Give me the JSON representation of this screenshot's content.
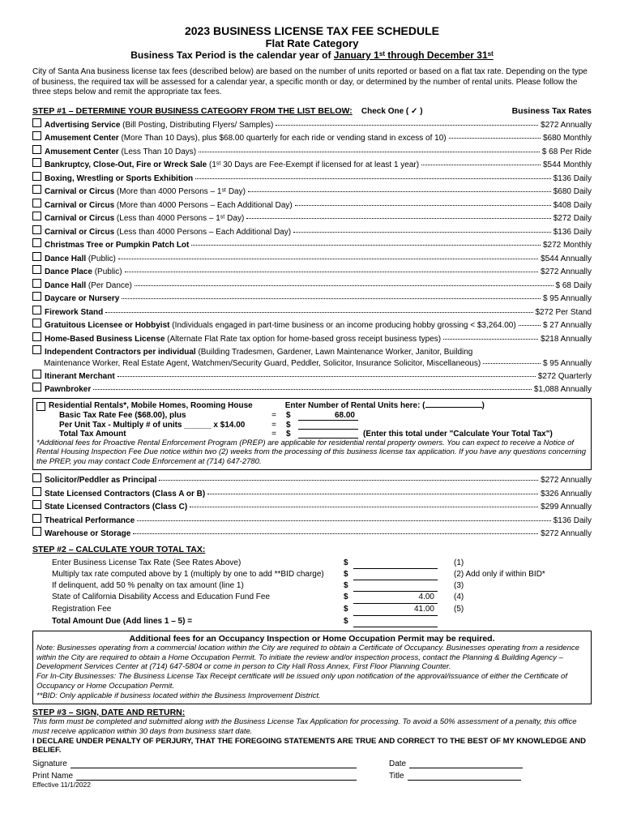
{
  "header": {
    "title": "2023 BUSINESS LICENSE TAX FEE SCHEDULE",
    "subtitle": "Flat Rate Category",
    "period_prefix": "Business Tax Period is the calendar year of ",
    "period_range": "January 1ˢᵗ through December 31ˢᵗ"
  },
  "intro": "City of Santa Ana business license tax fees (described below) are based on the number of units reported or based on a flat tax rate. Depending on the type of business, the required tax will be assessed for a calendar year, a specific month or day, or determined by the number of rental units. Please follow the three steps below and remit the appropriate tax fees.",
  "step1": {
    "label": "STEP #1 – DETERMINE YOUR BUSINESS CATEGORY FROM THE LIST BELOW:",
    "check": "Check One ( ✓ )",
    "rates_label": "Business Tax Rates"
  },
  "items": [
    {
      "name": "Advertising Service",
      "desc": " (Bill Posting, Distributing Flyers/ Samples)",
      "rate": "$272  Annually"
    },
    {
      "name": "Amusement Center",
      "desc": " (More Than 10 Days), plus $68.00 quarterly for each ride or vending stand in excess of 10)",
      "rate": "$680  Monthly"
    },
    {
      "name": "Amusement Center",
      "desc": " (Less Than 10 Days)",
      "rate": "$ 68  Per Ride"
    },
    {
      "name": "Bankruptcy, Close-Out, Fire or Wreck Sale",
      "desc": " (1ˢᵗ 30 Days are Fee-Exempt if licensed for at least 1 year)",
      "rate": "$544  Monthly"
    },
    {
      "name": "Boxing, Wrestling or Sports Exhibition",
      "desc": "",
      "rate": "$136  Daily"
    },
    {
      "name": "Carnival or Circus",
      "desc": " (More than 4000 Persons – 1ˢᵗ Day)",
      "rate": "$680  Daily"
    },
    {
      "name": "Carnival or Circus",
      "desc": " (More than 4000 Persons – Each Additional Day)",
      "rate": "$408  Daily"
    },
    {
      "name": "Carnival or Circus",
      "desc": " (Less than 4000 Persons – 1ˢᵗ Day)",
      "rate": "$272  Daily"
    },
    {
      "name": "Carnival or Circus",
      "desc": " (Less than 4000 Persons – Each Additional Day)",
      "rate": "$136  Daily"
    },
    {
      "name": "Christmas Tree or Pumpkin Patch Lot",
      "desc": "",
      "rate": "$272  Monthly"
    },
    {
      "name": "Dance Hall",
      "desc": " (Public)",
      "rate": "$544  Annually"
    },
    {
      "name": "Dance Place",
      "desc": " (Public)",
      "rate": "$272  Annually"
    },
    {
      "name": "Dance Hall",
      "desc": " (Per Dance)",
      "rate": "$ 68  Daily"
    },
    {
      "name": "Daycare or Nursery",
      "desc": "",
      "rate": "$ 95  Annually"
    },
    {
      "name": "Firework Stand",
      "desc": "",
      "rate": "$272  Per Stand"
    },
    {
      "name": "Gratuitous Licensee or Hobbyist",
      "desc": " (Individuals engaged in part-time business or an income producing hobby grossing < $3,264.00)",
      "rate": "$ 27  Annually"
    },
    {
      "name": "Home-Based Business License",
      "desc": " (Alternate Flat Rate tax option for home-based gross receipt business types)",
      "rate": "$218  Annually"
    }
  ],
  "independent": {
    "name": "Independent Contractors per individual",
    "desc": " (Building Tradesmen, Gardener, Lawn Maintenance Worker, Janitor, Building",
    "line2": "Maintenance Worker, Real Estate Agent, Watchmen/Security Guard, Peddler, Solicitor, Insurance Solicitor, Miscellaneous)",
    "rate": "$ 95  Annually"
  },
  "items2": [
    {
      "name": "Itinerant Merchant",
      "desc": "",
      "rate": "$272  Quarterly"
    },
    {
      "name": "Pawnbroker",
      "desc": "",
      "rate": "$1,088 Annually"
    }
  ],
  "rental": {
    "name": "Residential Rentals*, Mobile Homes, Rooming House",
    "enter": "Enter Number of Rental Units here: (",
    "basic_label": "Basic Tax Rate Fee ($68.00), plus",
    "basic_val": "68.00",
    "unit_label": "Per Unit Tax - Multiply # of units ______ x $14.00",
    "total_label": "Total Tax Amount",
    "total_hint": "(Enter this total under \"Calculate Your Total Tax\")",
    "note": "*Additional fees for Proactive Rental Enforcement Program (PREP) are applicable for residential rental property owners. You can expect to receive a Notice of Rental Housing Inspection Fee Due notice within two (2) weeks from the processing of this business license tax application. If you have any questions concerning the PREP, you may contact Code Enforcement at (714) 647-2780."
  },
  "items3": [
    {
      "name": "Solicitor/Peddler as Principal",
      "desc": "",
      "rate": "$272  Annually"
    },
    {
      "name": "State Licensed Contractors (Class A or B)",
      "desc": "",
      "rate": "$326  Annually"
    },
    {
      "name": "State Licensed Contractors (Class C)",
      "desc": "",
      "rate": "$299  Annually"
    },
    {
      "name": "Theatrical Performance",
      "desc": "",
      "rate": "$136  Daily"
    },
    {
      "name": "Warehouse or Storage",
      "desc": "",
      "rate": "$272  Annually"
    }
  ],
  "step2": {
    "label": "STEP #2 – CALCULATE YOUR TOTAL TAX:",
    "rows": [
      {
        "label": "Enter Business License Tax Rate (See Rates Above)",
        "val": "",
        "num": "(1)",
        "extra": ""
      },
      {
        "label": "Multiply tax rate computed above by 1 (multiply by one to add **BID charge)",
        "val": "",
        "num": "(2)",
        "extra": " Add only if within BID*"
      },
      {
        "label": "If delinquent, add 50 % penalty on tax amount (line 1)",
        "val": "",
        "num": "(3)",
        "extra": ""
      },
      {
        "label": "State of California Disability Access and Education Fund Fee",
        "val": "4.00",
        "num": "(4)",
        "extra": ""
      },
      {
        "label": "Registration Fee",
        "val": "41.00",
        "num": "(5)",
        "extra": ""
      }
    ],
    "total": "Total Amount Due  (Add lines 1 – 5)  ="
  },
  "notes": {
    "header": "Additional fees for an Occupancy Inspection or Home Occupation Permit may be required.",
    "body": "Note: Businesses operating from a commercial location within the City are required to obtain a Certificate of Occupancy. Businesses operating from a residence within the City are required to obtain a Home Occupation Permit. To initiate the review and/or inspection process, contact the Planning & Building Agency –Development Services Center at (714) 647-5804 or come in person to City Hall Ross Annex, First Floor Planning Counter.",
    "incity": "For In-City Businesses: The Business License Tax Receipt certificate will be issued only upon notification of the approval/issuance of either the Certificate of Occupancy or Home Occupation Permit.",
    "bid": "**BID: Only applicable if business located within the Business Improvement District."
  },
  "step3": {
    "label": "STEP #3 – SIGN, DATE AND RETURN:",
    "text": "This form must be completed and submitted along with the Business License Tax Application for processing. To avoid a 50% assessment of a penalty, this office must receive application within 30 days from business start date.",
    "declare": "I DECLARE UNDER PENALTY OF PERJURY, THAT THE FOREGOING STATEMENTS ARE TRUE AND CORRECT TO THE BEST OF MY KNOWLEDGE AND BELIEF."
  },
  "sig": {
    "signature": "Signature",
    "date": "Date",
    "print": "Print Name",
    "title": "Title",
    "eff": "Effective 11/1/2022"
  }
}
